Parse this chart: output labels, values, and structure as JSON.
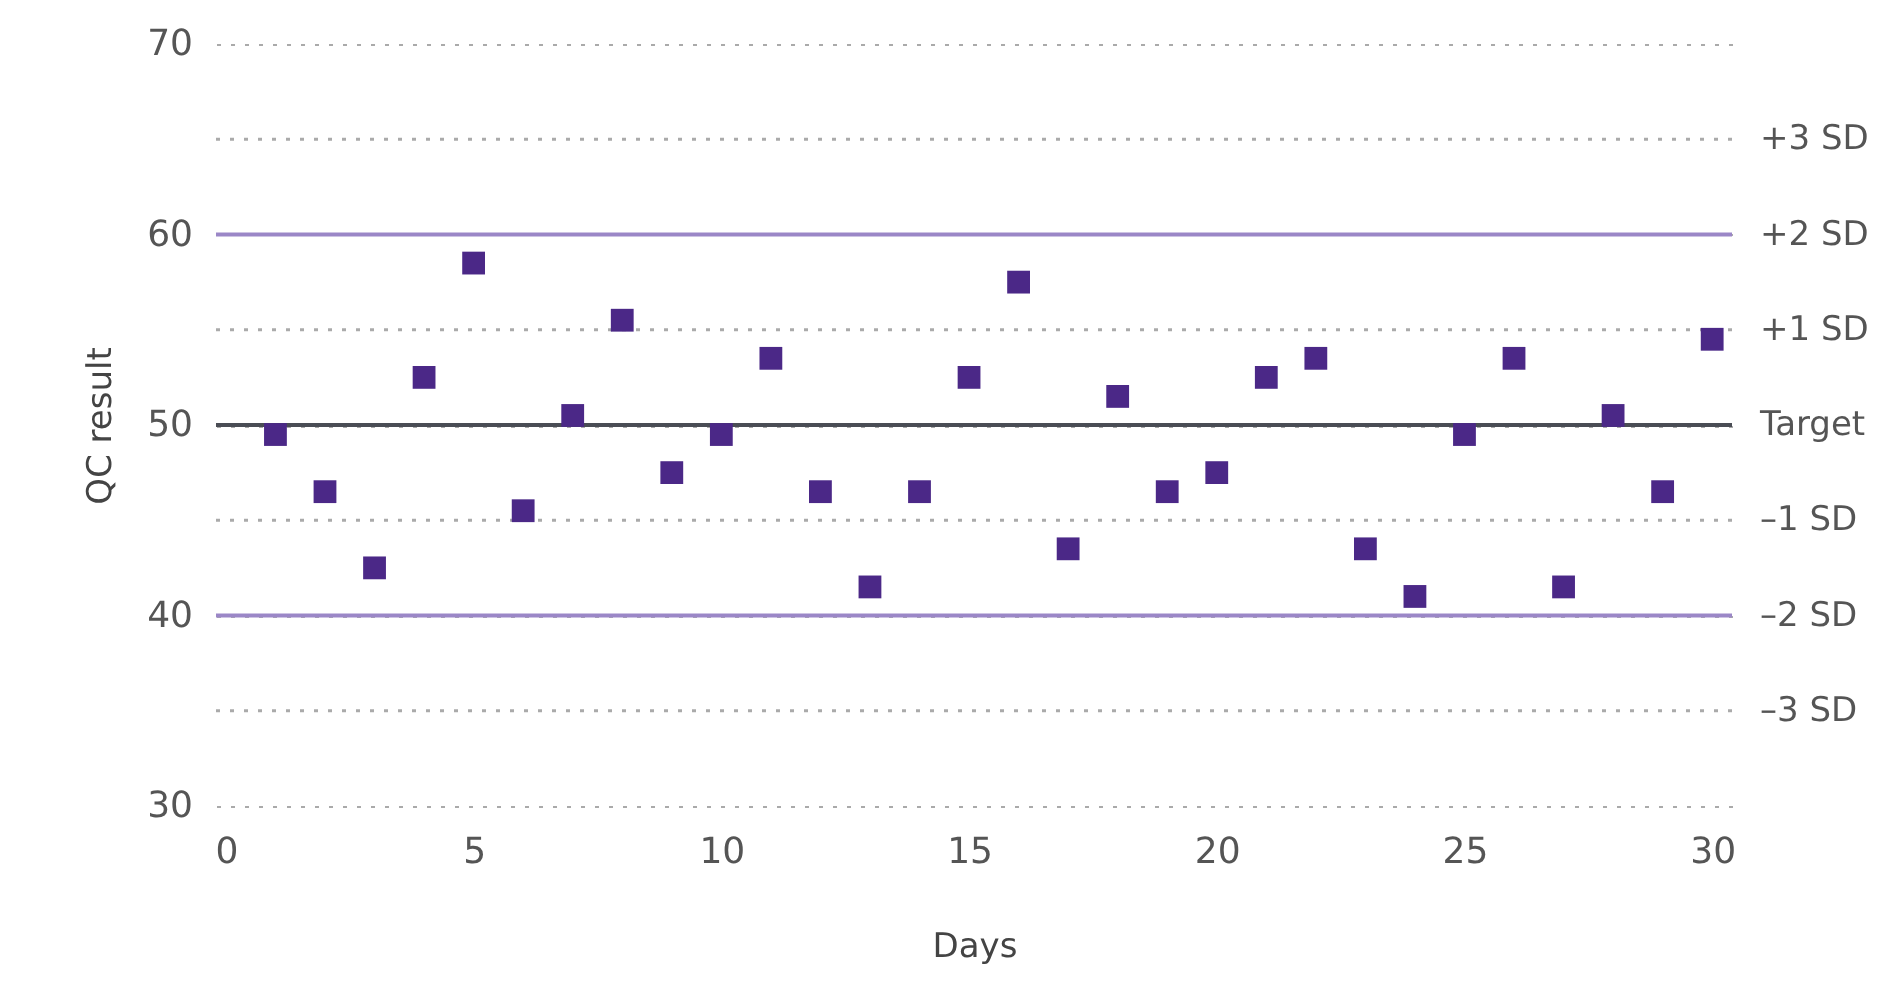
{
  "chart_data": {
    "type": "scatter",
    "xlabel": "Days",
    "ylabel": "QC result",
    "x": [
      1,
      2,
      3,
      4,
      5,
      6,
      7,
      8,
      9,
      10,
      11,
      12,
      13,
      14,
      15,
      16,
      17,
      18,
      19,
      20,
      21,
      22,
      23,
      24,
      25,
      26,
      27,
      28,
      29,
      30
    ],
    "series": [
      {
        "color": "#4b2887",
        "values": [
          49.5,
          46.5,
          42.5,
          52.5,
          58.5,
          45.5,
          50.5,
          55.5,
          47.5,
          49.5,
          53.5,
          46.5,
          41.5,
          46.5,
          52.5,
          57.5,
          43.5,
          51.5,
          46.5,
          47.5,
          52.5,
          53.5,
          43.5,
          41,
          49.5,
          53.5,
          41.5,
          50.5,
          46.5,
          54.5
        ]
      }
    ],
    "marker": "square",
    "xlim": [
      -0.2,
      30.4
    ],
    "xticks": [
      0,
      5,
      10,
      15,
      20,
      25,
      30
    ],
    "ylim": [
      30,
      70
    ],
    "yticks": [
      30,
      40,
      50,
      60,
      70
    ],
    "grid": "y",
    "ref_lines": [
      {
        "axis": "y",
        "value": 65,
        "label": "+3 SD",
        "color": "#aaaaaa",
        "line_style": "dotted"
      },
      {
        "axis": "y",
        "value": 60,
        "label": "+2 SD",
        "color": "#9b87c7",
        "line_style": "solid"
      },
      {
        "axis": "y",
        "value": 55,
        "label": "+1 SD",
        "color": "#aaaaaa",
        "line_style": "dotted"
      },
      {
        "axis": "y",
        "value": 50,
        "label": "Target",
        "color": "#4a4d55",
        "line_style": "solid"
      },
      {
        "axis": "y",
        "value": 45,
        "label": "–1 SD",
        "color": "#aaaaaa",
        "line_style": "dotted"
      },
      {
        "axis": "y",
        "value": 40,
        "label": "–2 SD",
        "color": "#9b87c7",
        "line_style": "solid"
      },
      {
        "axis": "y",
        "value": 35,
        "label": "–3 SD",
        "color": "#aaaaaa",
        "line_style": "dotted"
      }
    ]
  }
}
